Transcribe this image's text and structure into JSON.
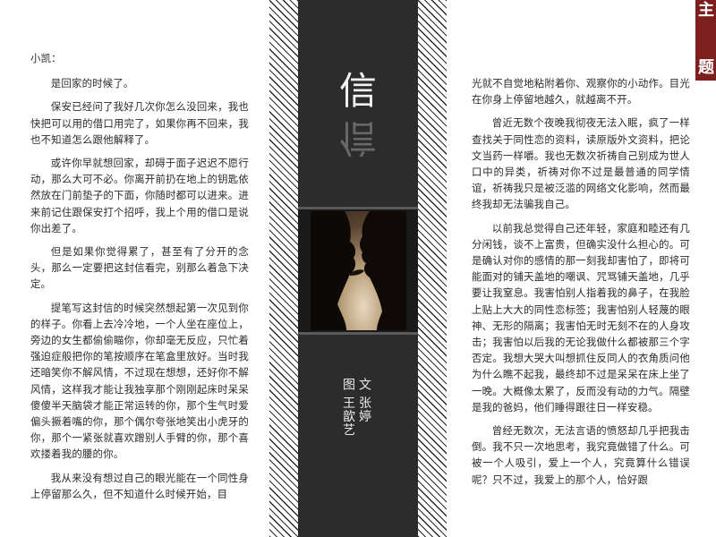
{
  "left_column": {
    "salutation": "小凯：",
    "paragraphs": [
      "是回家的时候了。",
      "保安已经问了我好几次你怎么没回来，我也快把可以用的借口用完了，如果你再不回来，我也不知道怎么跟他解释了。",
      "或许你早就想回家，却碍于面子迟迟不愿行动，那么大可不必。你离开前扔在地上的钥匙依然放在门前垫子的下面，你随时都可以进来。进来前记住跟保安打个招呼，我上个用的借口是说你出差了。",
      "但是如果你觉得累了，甚至有了分开的念头，那么一定要把这封信看完，别那么着急下决定。",
      "提笔写这封信的时候突然想起第一次见到你的样子。你看上去冷冷地，一个人坐在座位上，旁边的女生都偷偷瞄你，你却毫无反应，只忙着强迫症般把你的笔按顺序在笔盒里放好。当时我还暗笑你不解风情，不过现在想想，还好你不解风情，这样我才能让我独享那个刚刚起床时呆呆傻傻半天脑袋才能正常运转的你，那个生气时爱偏头撅着嘴的你，那个偶尔夸张地笑出小虎牙的你，那个一紧张就喜欢蹭别人手臂的你，那个喜欢搂着我的腰的你。",
      "我从来没有想过自己的眼光能在一个同性身上停留那么久，但不知道什么时候开始，目"
    ]
  },
  "center": {
    "title": "信",
    "credit_text": "文 张婷",
    "credit_image": "图 王歆艺"
  },
  "right_column": {
    "continuation": "光就不自觉地粘附着你、观察你的小动作。目光在你身上停留地越久，就越离不开。",
    "paragraphs": [
      "曾近无数个夜晚我彻夜无法入眠，疯了一样查找关于同性恋的资料，读原版外文资料，把论文当药一样嚼。我也无数次祈祷自己别成为世人口中的异类，祈祷对你不过是最普通的同学情谊，祈祷我只是被泛滥的网络文化影响，然而最终我却无法骗我自己。",
      "以前我总觉得自己还年轻，家庭和睦还有几分闲钱，谈不上富贵，但确实没什么担心的。可是确认对你的感情的那一刻我却害怕了，即将可能面对的铺天盖地的嘲讽、咒骂铺天盖地，几乎要让我窒息。我害怕别人指着我的鼻子，在我脸上贴上大大的同性恋标签；我害怕别人轻蔑的眼神、无形的隔离；我害怕无时无刻不在的人身攻击；我害怕以后我的无论我做什么都被那三个字否定。我想大哭大叫想抓住反同人的衣角质问他为什么瞧不起我，最终却不过是呆呆在床上坐了一晚。大概像太累了，反而没有动的力气。隔壁是我的爸妈，他们睡得跟往日一样安稳。",
      "曾经无数次，无法言语的愤怒却几乎把我击倒。我不只一次地思考，我究竟做错了什么。可被一个人吸引，爱上一个人，究竟算什么错误呢？只不过，我爱上的那个人，恰好跟"
    ]
  },
  "corner_tab": {
    "top_char": "主",
    "bottom_char": "题"
  },
  "colors": {
    "center_band": "#2c2c2c",
    "accent_tab": "#7d1f1f",
    "text": "#2b2b2b"
  }
}
